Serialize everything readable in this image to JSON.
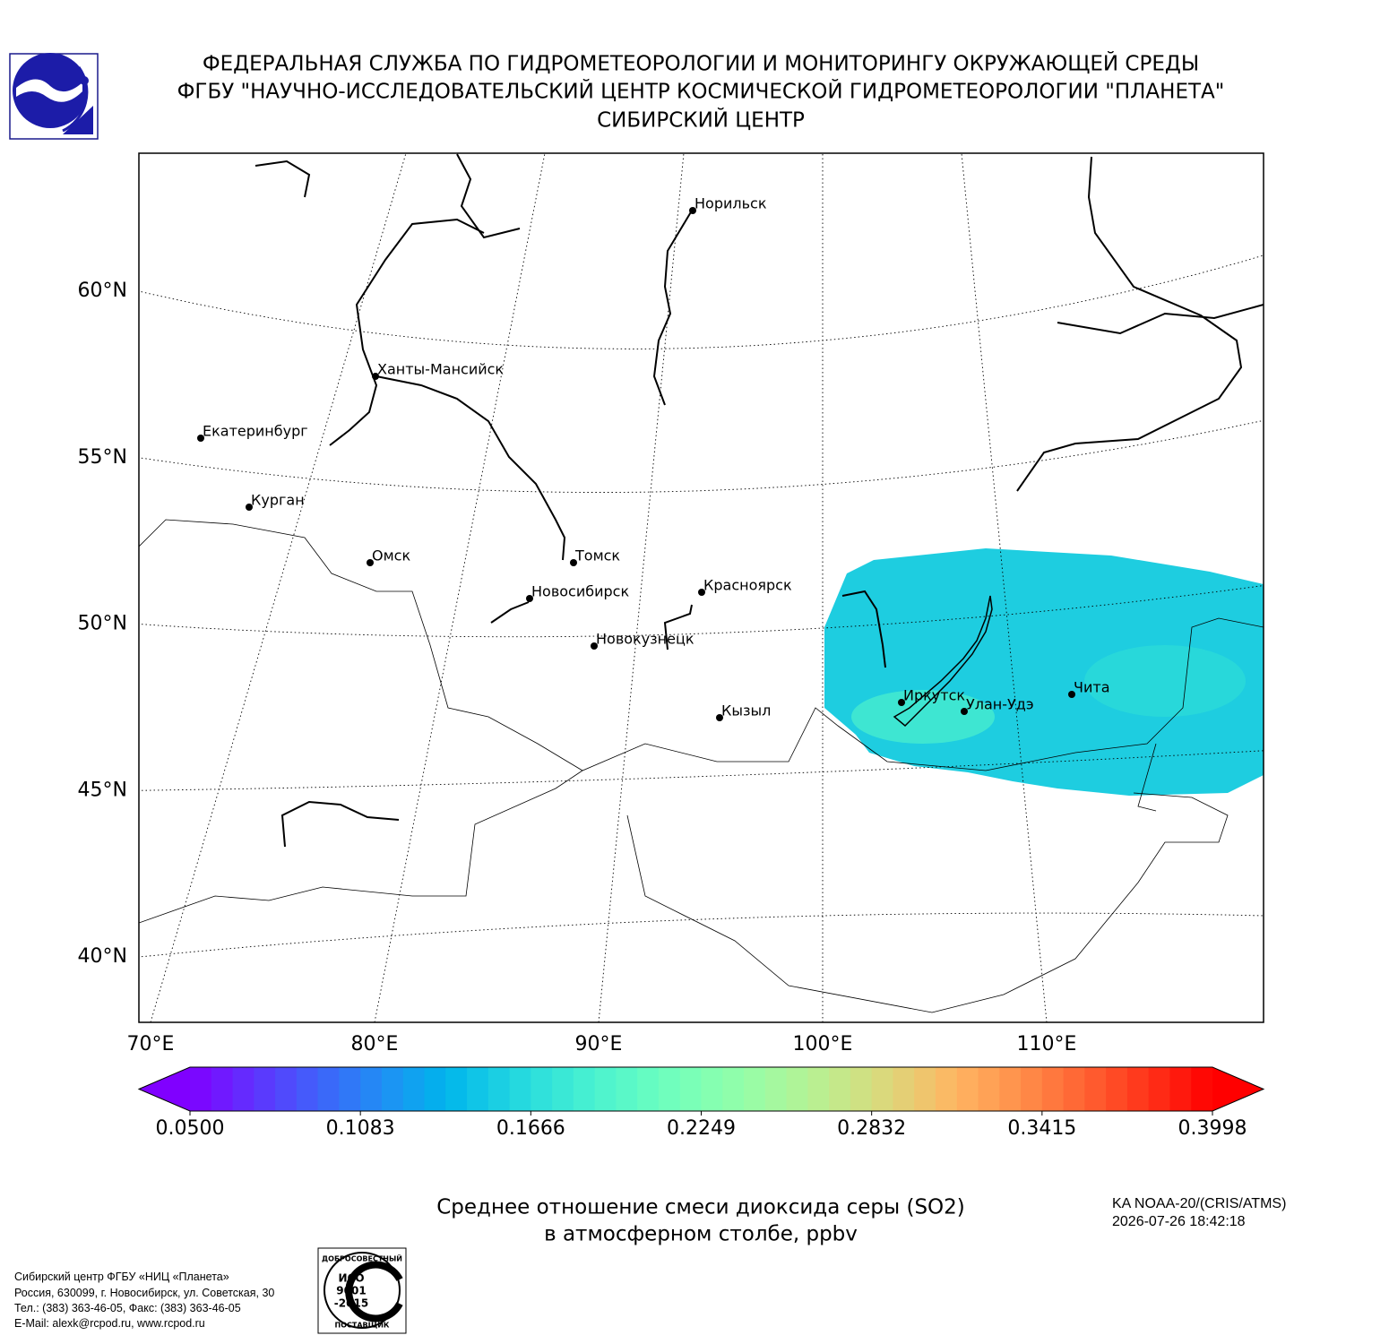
{
  "header": {
    "lines": [
      "ФЕДЕРАЛЬНАЯ СЛУЖБА ПО ГИДРОМЕТЕОРОЛОГИИ И МОНИТОРИНГУ ОКРУЖАЮЩЕЙ СРЕДЫ",
      "ФГБУ \"НАУЧНО-ИССЛЕДОВАТЕЛЬСКИЙ ЦЕНТР КОСМИЧЕСКОЙ ГИДРОМЕТЕОРОЛОГИИ \"ПЛАНЕТА\"",
      "СИБИРСКИЙ ЦЕНТР"
    ]
  },
  "chart_data": {
    "type": "map",
    "lat_ticks": [
      {
        "value": 60,
        "label": "60°N"
      },
      {
        "value": 55,
        "label": "55°N"
      },
      {
        "value": 50,
        "label": "50°N"
      },
      {
        "value": 45,
        "label": "45°N"
      },
      {
        "value": 40,
        "label": "40°N"
      }
    ],
    "lon_ticks": [
      {
        "value": 70,
        "label": "70°E"
      },
      {
        "value": 80,
        "label": "80°E"
      },
      {
        "value": 90,
        "label": "90°E"
      },
      {
        "value": 100,
        "label": "100°E"
      },
      {
        "value": 110,
        "label": "110°E"
      }
    ],
    "cities": [
      "Норильск",
      "Ханты-Мансийск",
      "Екатеринбург",
      "Курган",
      "Омск",
      "Томск",
      "Новосибирск",
      "Красноярск",
      "Новокузнецк",
      "Кызыл",
      "Иркутск",
      "Улан-Удэ",
      "Чита"
    ],
    "colorbar": {
      "lim": [
        0.05,
        0.3998
      ],
      "colormap": "rainbow",
      "extend": "both",
      "ticks": [
        {
          "value": 0.05,
          "label": "0.0500"
        },
        {
          "value": 0.1083,
          "label": "0.1083"
        },
        {
          "value": 0.1666,
          "label": "0.1666"
        },
        {
          "value": 0.2249,
          "label": "0.2249"
        },
        {
          "value": 0.2832,
          "label": "0.2832"
        },
        {
          "value": 0.3415,
          "label": "0.3415"
        },
        {
          "value": 0.3998,
          "label": "0.3998"
        }
      ]
    },
    "caption": [
      "Среднее отношение смеси диоксида серы (SO2)",
      "в атмосферном столбе, ppbv"
    ]
  },
  "satellite": {
    "lines": [
      "KA NOAA-20/(CRIS/ATMS)",
      "2026-07-26 18:42:18"
    ]
  },
  "footer": {
    "lines": [
      "Сибирский центр ФГБУ «НИЦ «Планета»",
      "Россия, 630099, г. Новосибирск, ул. Советская, 30",
      "Тел.: (383) 363-46-05, Факс: (383) 363-46-05",
      "E-Mail: alexk@rcpod.ru, www.rcpod.ru"
    ]
  },
  "iso_logo": {
    "top": "ДОБРОСОВЕСТНЫЙ",
    "lines": [
      "ИСО",
      "9001",
      "-2015"
    ],
    "bottom": "ПОСТАВЩИК"
  }
}
